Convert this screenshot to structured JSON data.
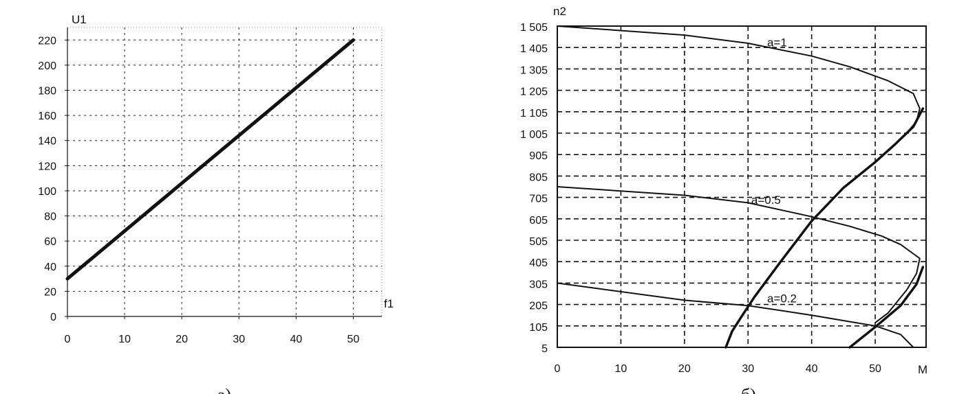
{
  "chart_data": [
    {
      "type": "line",
      "panel_caption": "а)",
      "ylabel": "U1",
      "xlabel": "f1",
      "xlim": [
        0,
        55
      ],
      "ylim": [
        0,
        230
      ],
      "x_ticks": [
        0,
        10,
        20,
        30,
        40,
        50
      ],
      "y_ticks": [
        0,
        20,
        40,
        60,
        80,
        100,
        120,
        140,
        160,
        180,
        200,
        220
      ],
      "grid": true,
      "series": [
        {
          "x": [
            0,
            50
          ],
          "y": [
            30,
            220
          ]
        }
      ]
    },
    {
      "type": "line",
      "panel_caption": "б)",
      "ylabel": "n2",
      "xlabel": "M",
      "xlim": [
        0,
        58
      ],
      "ylim": [
        5,
        1505
      ],
      "x_ticks": [
        0,
        10,
        20,
        30,
        40,
        50
      ],
      "y_ticks": [
        5,
        105,
        205,
        305,
        405,
        505,
        605,
        705,
        805,
        905,
        1005,
        1105,
        1205,
        1305,
        1405,
        1505
      ],
      "y_tick_labels": [
        "5",
        "105",
        "205",
        "305",
        "405",
        "505",
        "605",
        "705",
        "805",
        "905",
        "1 005",
        "1 105",
        "1 205",
        "1 305",
        "1 405",
        "1 505"
      ],
      "grid": true,
      "series": [
        {
          "name": "a=1",
          "x": [
            0,
            20,
            30,
            40,
            46,
            52,
            56,
            57,
            56.5,
            54.5,
            52
          ],
          "y": [
            1505,
            1463,
            1425,
            1365,
            1315,
            1250,
            1190,
            1120,
            1060,
            990,
            920
          ]
        },
        {
          "name": "a=0.5",
          "x": [
            0,
            20,
            30,
            40,
            46,
            51,
            54,
            57,
            56.5,
            55,
            52,
            50
          ],
          "y": [
            755,
            715,
            680,
            615,
            570,
            525,
            485,
            420,
            350,
            275,
            165,
            120
          ]
        },
        {
          "name": "a=0.2",
          "x": [
            0,
            20,
            30,
            40,
            46,
            50,
            54,
            56
          ],
          "y": [
            305,
            225,
            200,
            155,
            125,
            105,
            65,
            5
          ]
        },
        {
          "x": [
            26.5,
            27.5,
            29,
            31,
            35,
            40,
            45,
            50,
            53,
            56,
            57.5
          ],
          "y": [
            5,
            80,
            150,
            240,
            400,
            595,
            750,
            870,
            950,
            1035,
            1120
          ]
        },
        {
          "x": [
            46,
            50,
            54,
            56.5,
            57.5
          ],
          "y": [
            5,
            100,
            200,
            300,
            380
          ]
        }
      ],
      "annotations": [
        {
          "text": "a=1",
          "x": 33,
          "y": 1410
        },
        {
          "text": "a=0.5",
          "x": 30.5,
          "y": 675
        },
        {
          "text": "a=0.2",
          "x": 33,
          "y": 215
        }
      ]
    }
  ]
}
